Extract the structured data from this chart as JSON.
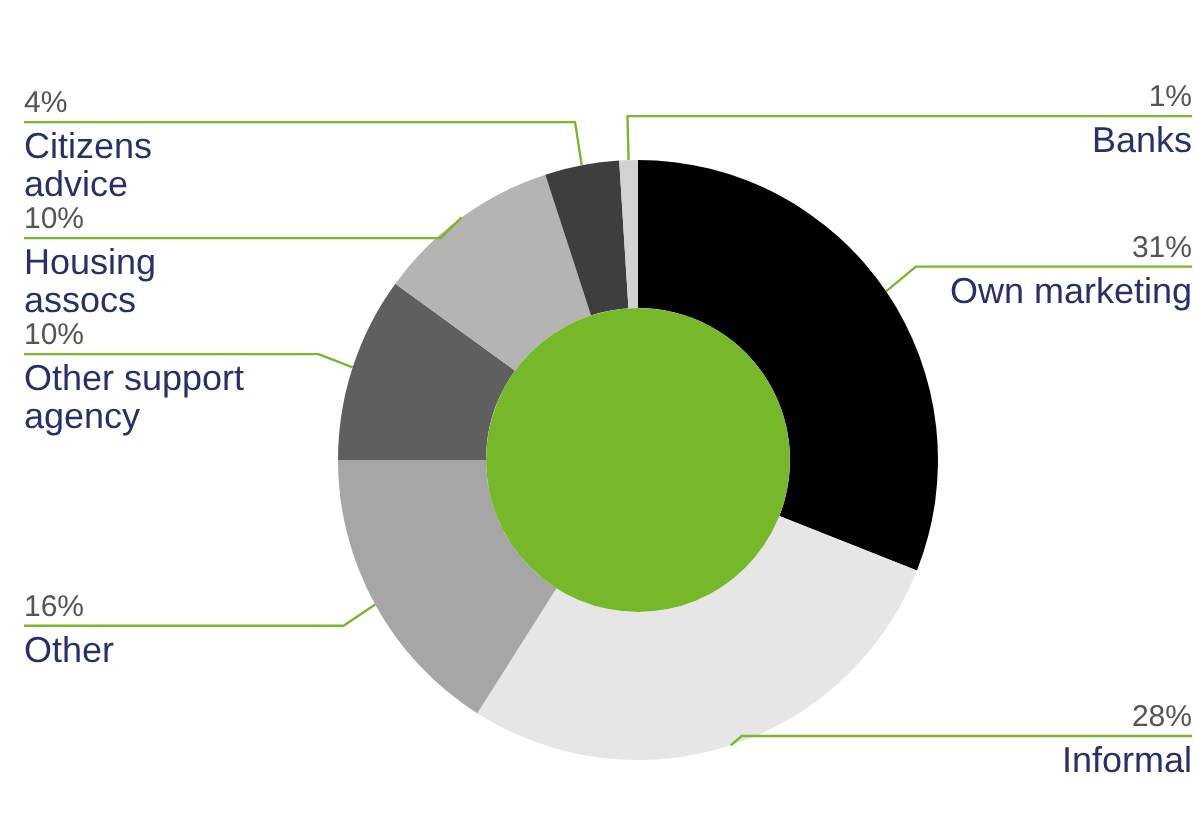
{
  "chart_data": {
    "type": "donut",
    "categories": [
      "Own marketing",
      "Informal",
      "Other",
      "Other support agency",
      "Housing assocs",
      "Citizens advice",
      "Banks"
    ],
    "values": [
      31,
      28,
      16,
      10,
      10,
      4,
      1
    ],
    "colors": [
      "#000000",
      "#e6e6e6",
      "#a6a6a6",
      "#5f5f5f",
      "#b4b4b4",
      "#3e3e3e",
      "#d2d2d2"
    ],
    "value_labels": [
      "31%",
      "28%",
      "16%",
      "10%",
      "10%",
      "4%",
      "1%"
    ],
    "legend": false
  }
}
